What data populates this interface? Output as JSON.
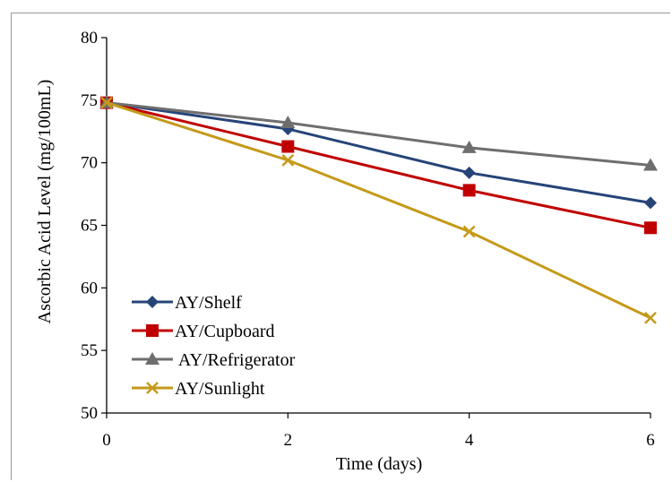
{
  "chart_data": {
    "type": "line",
    "title": "",
    "xlabel": "Time (days)",
    "ylabel": "Ascorbic Acid Level (mg/100mL)",
    "x": [
      0,
      2,
      4,
      6
    ],
    "xticks": [
      "0",
      "2",
      "4",
      "6"
    ],
    "xlim": [
      0,
      6
    ],
    "ylim": [
      50,
      80
    ],
    "yticks": [
      "50",
      "55",
      "60",
      "65",
      "70",
      "75",
      "80"
    ],
    "grid": false,
    "legend_position": "bottom-left",
    "series": [
      {
        "name": "AY/Shelf",
        "values": [
          74.8,
          72.7,
          69.2,
          66.8
        ],
        "color": "#264478",
        "marker": "diamond"
      },
      {
        "name": "AY/Cupboard",
        "values": [
          74.8,
          71.3,
          67.8,
          64.8
        ],
        "color": "#c00000",
        "marker": "square"
      },
      {
        "name": " AY/Refrigerator",
        "values": [
          74.8,
          73.2,
          71.2,
          69.8
        ],
        "color": "#6e6e6e",
        "marker": "triangle"
      },
      {
        "name": "AY/Sunlight",
        "values": [
          74.8,
          70.2,
          64.5,
          57.6
        ],
        "color": "#c59a1a",
        "marker": "x"
      }
    ]
  }
}
